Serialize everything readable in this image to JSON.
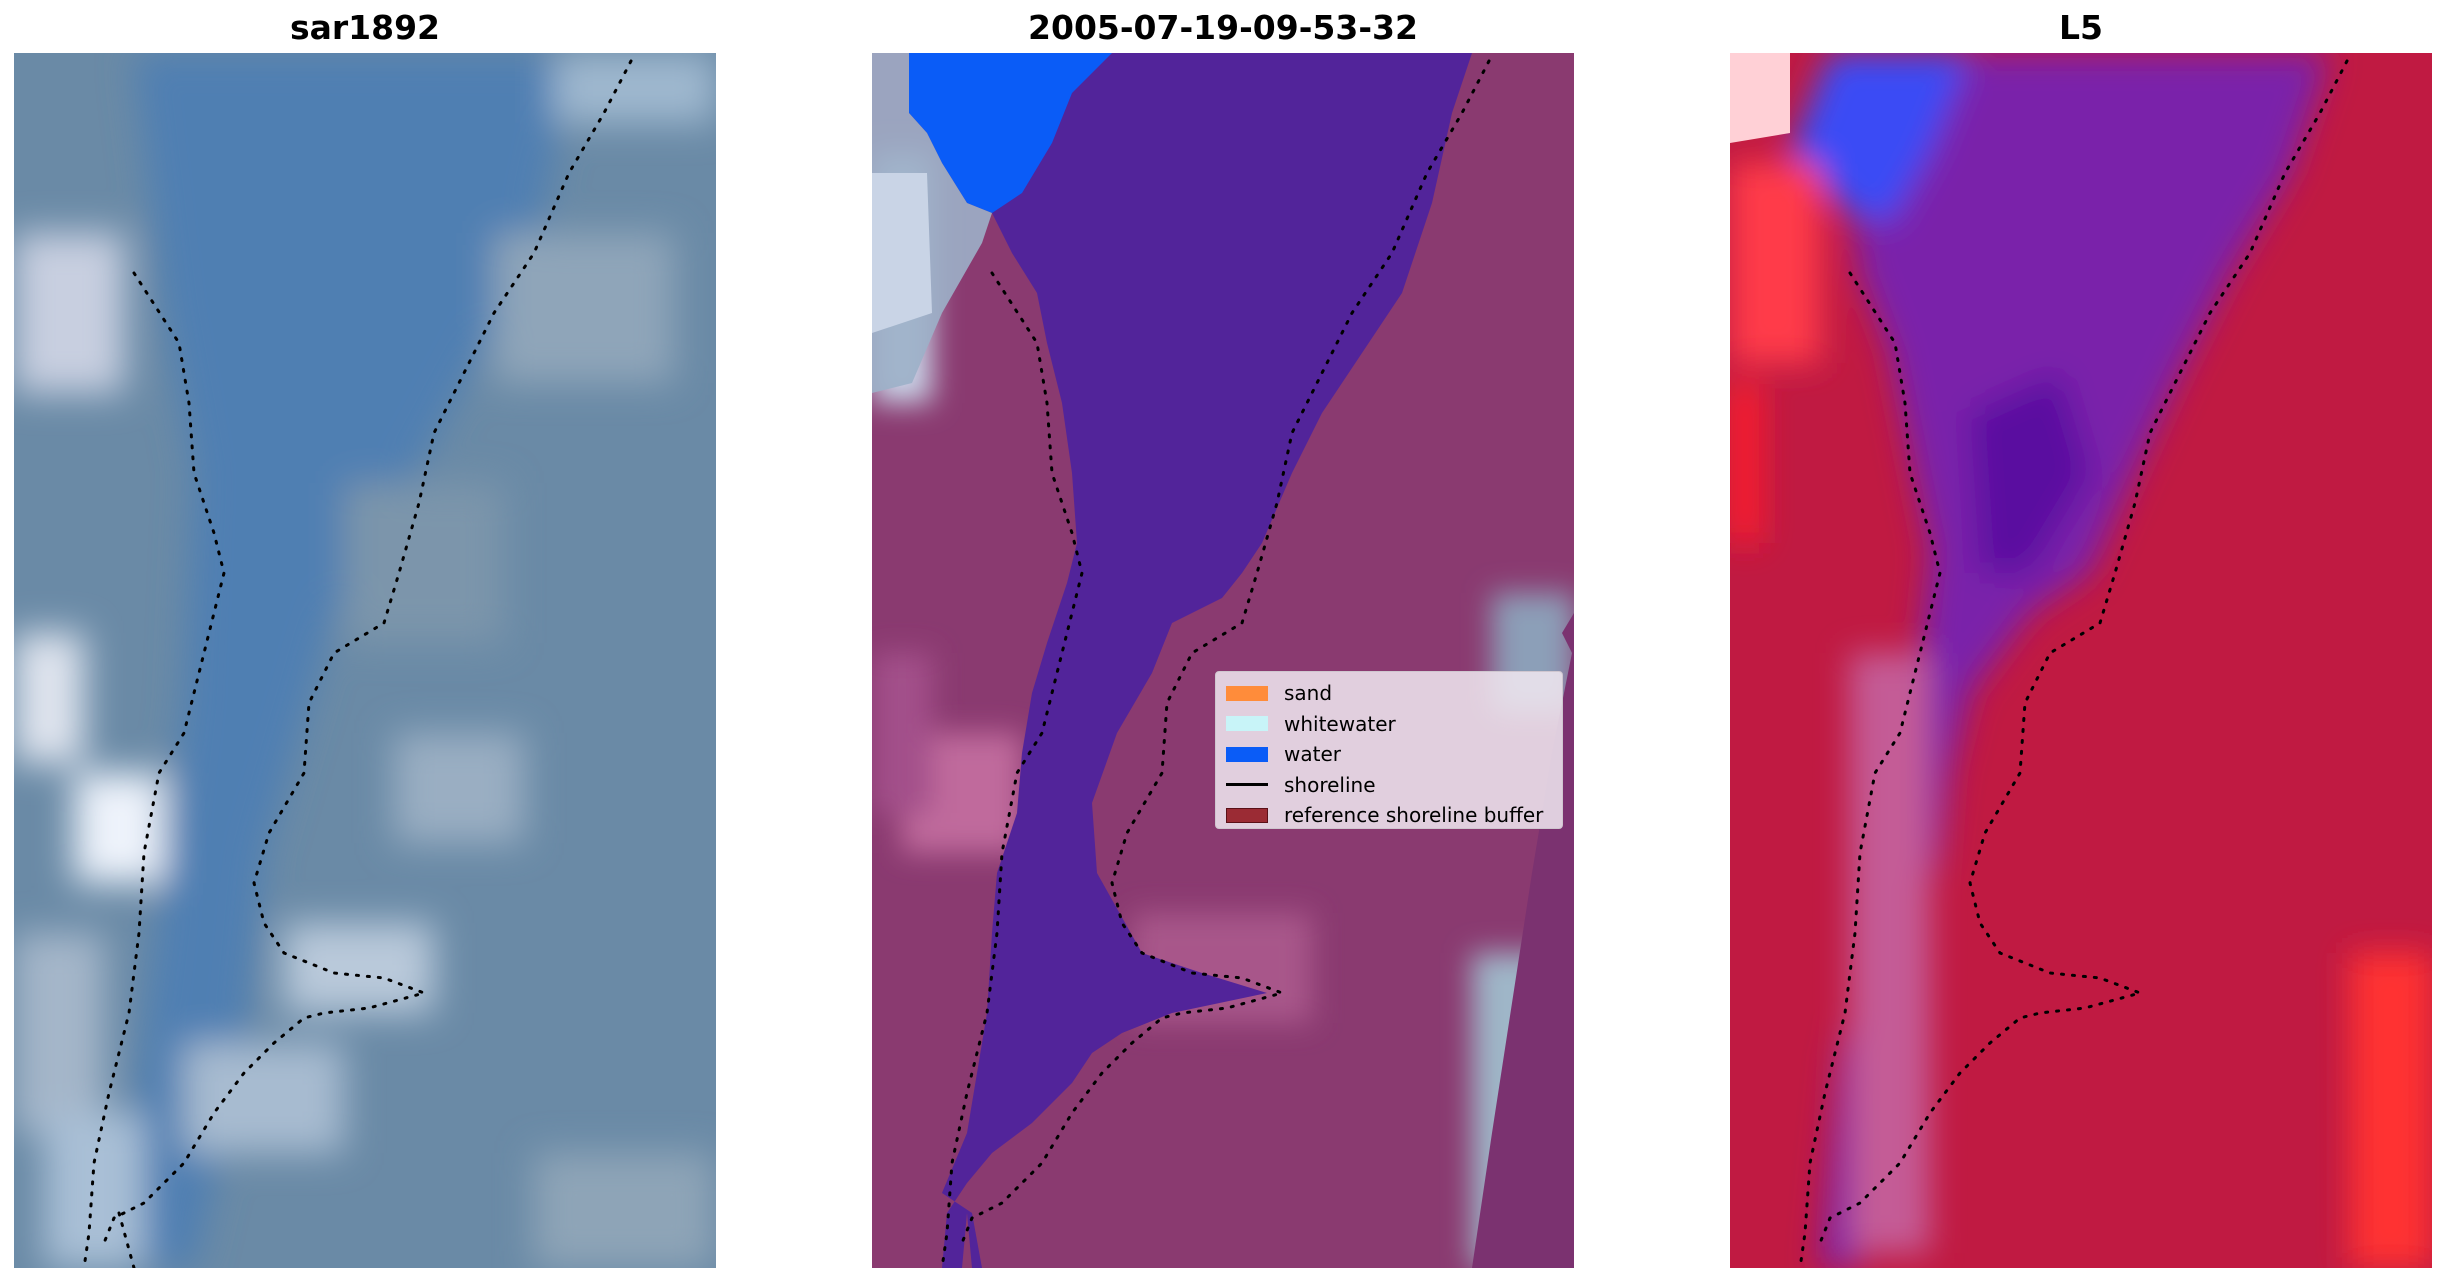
{
  "panels": [
    {
      "title": "sar1892"
    },
    {
      "title": "2005-07-19-09-53-32"
    },
    {
      "title": "L5"
    }
  ],
  "legend": {
    "items": [
      {
        "label": "sand",
        "color": "#ff8c3a",
        "kind": "patch"
      },
      {
        "label": "whitewater",
        "color": "#c8f4f8",
        "kind": "patch"
      },
      {
        "label": "water",
        "color": "#0a5cf7",
        "kind": "patch"
      },
      {
        "label": "shoreline",
        "color": "#000000",
        "kind": "line"
      },
      {
        "label": "reference shoreline buffer",
        "color": "#9b2b34",
        "kind": "patch"
      }
    ]
  },
  "colors": {
    "rgb_base": "#5f86a7",
    "classified_water": "#0a5cf7",
    "classified_sea": "#50229a",
    "classified_land": "#803268",
    "index_water": "#6a1aa8",
    "index_land": "#c01a40",
    "shoreline": "#000000"
  }
}
